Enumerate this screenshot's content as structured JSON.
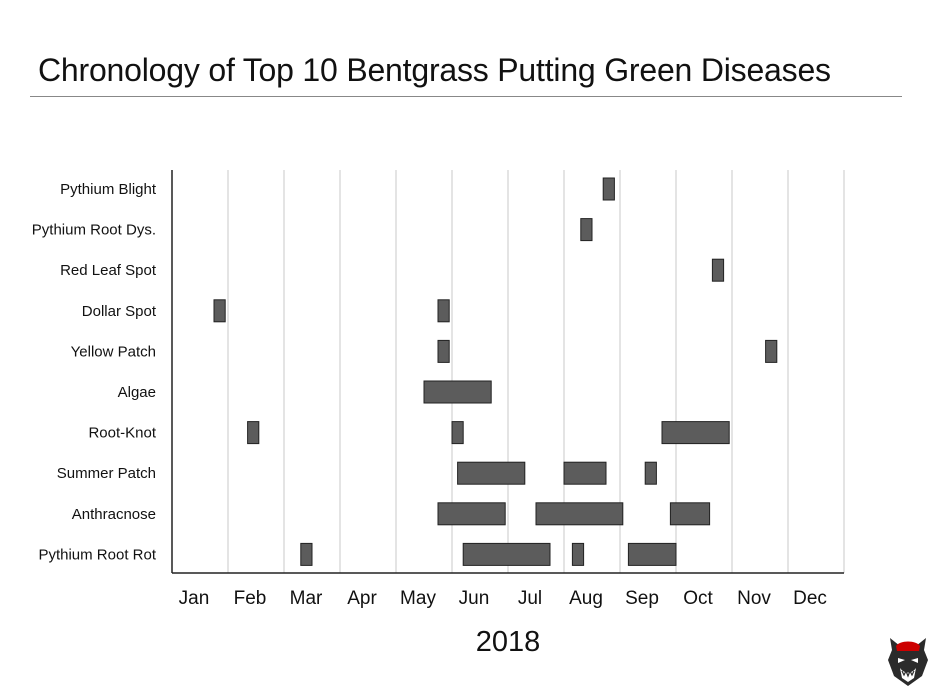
{
  "title": "Chronology of Top 10 Bentgrass Putting Green Diseases",
  "xlabel": "2018",
  "colors": {
    "bar_fill": "#5c5c5c",
    "bar_stroke": "#222222",
    "grid": "#c8c8c8",
    "axis": "#222222"
  },
  "chart_data": {
    "type": "bar",
    "orientation": "horizontal-range",
    "title": "Chronology of Top 10 Bentgrass Putting Green Diseases",
    "xlabel": "2018",
    "ylabel": "",
    "x_unit": "month (Jan = 0 ... Dec = 11, fractional = position within year)",
    "xlim": [
      0,
      12
    ],
    "x_ticks": [
      "Jan",
      "Feb",
      "Mar",
      "Apr",
      "May",
      "Jun",
      "Jul",
      "Aug",
      "Sep",
      "Oct",
      "Nov",
      "Dec"
    ],
    "grid": true,
    "categories": [
      "Pythium Blight",
      "Pythium Root Dys.",
      "Red Leaf Spot",
      "Dollar Spot",
      "Yellow Patch",
      "Algae",
      "Root-Knot",
      "Summer Patch",
      "Anthracnose",
      "Pythium Root Rot"
    ],
    "series": [
      {
        "category": "Pythium Blight",
        "ranges": [
          [
            7.7,
            7.9
          ]
        ]
      },
      {
        "category": "Pythium Root Dys.",
        "ranges": [
          [
            7.3,
            7.5
          ]
        ]
      },
      {
        "category": "Red Leaf Spot",
        "ranges": [
          [
            9.65,
            9.85
          ]
        ]
      },
      {
        "category": "Dollar Spot",
        "ranges": [
          [
            0.75,
            0.95
          ],
          [
            4.75,
            4.95
          ]
        ]
      },
      {
        "category": "Yellow Patch",
        "ranges": [
          [
            4.75,
            4.95
          ],
          [
            10.6,
            10.8
          ]
        ]
      },
      {
        "category": "Algae",
        "ranges": [
          [
            4.5,
            5.7
          ]
        ]
      },
      {
        "category": "Root-Knot",
        "ranges": [
          [
            1.35,
            1.55
          ],
          [
            5.0,
            5.2
          ],
          [
            8.75,
            9.95
          ]
        ]
      },
      {
        "category": "Summer Patch",
        "ranges": [
          [
            5.1,
            6.3
          ],
          [
            7.0,
            7.75
          ],
          [
            8.45,
            8.65
          ]
        ]
      },
      {
        "category": "Anthracnose",
        "ranges": [
          [
            4.75,
            5.95
          ],
          [
            6.5,
            8.05
          ],
          [
            8.9,
            9.6
          ]
        ]
      },
      {
        "category": "Pythium Root Rot",
        "ranges": [
          [
            2.3,
            2.5
          ],
          [
            5.2,
            6.75
          ],
          [
            7.15,
            7.35
          ],
          [
            8.15,
            9.0
          ]
        ]
      }
    ]
  }
}
